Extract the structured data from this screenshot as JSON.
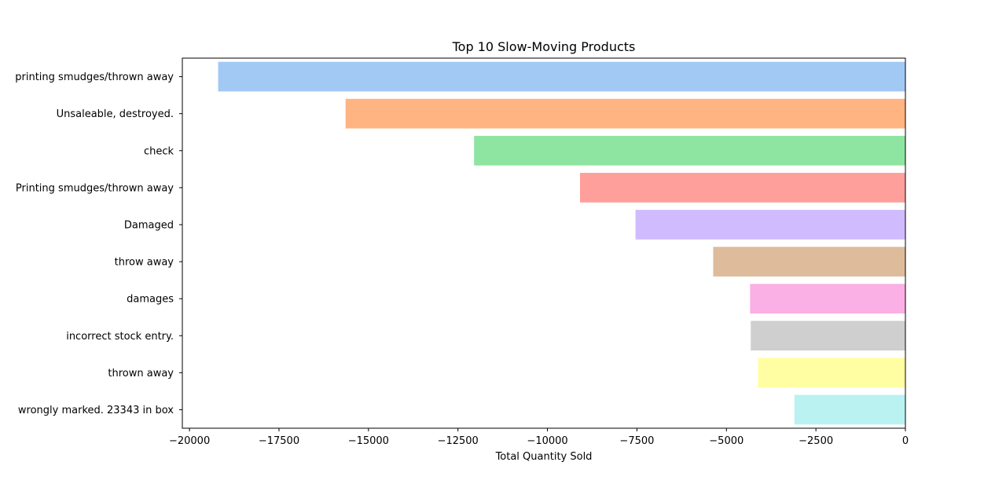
{
  "chart_data": {
    "type": "bar",
    "orientation": "horizontal",
    "title": "Top 10 Slow-Moving Products",
    "xlabel": "Total Quantity Sold",
    "ylabel": "",
    "xlim": [
      -20200,
      0
    ],
    "xticks": [
      -20000,
      -17500,
      -15000,
      -12500,
      -10000,
      -7500,
      -5000,
      -2500,
      0
    ],
    "xtick_labels": [
      "−20000",
      "−17500",
      "−15000",
      "−12500",
      "−10000",
      "−7500",
      "−5000",
      "−2500",
      "0"
    ],
    "grid": false,
    "legend": "none",
    "categories": [
      "printing smudges/thrown away",
      "Unsaleable, destroyed.",
      "check",
      "Printing smudges/thrown away",
      "Damaged",
      "throw away",
      "damages",
      "incorrect stock entry.",
      "thrown away",
      "wrongly marked. 23343 in box"
    ],
    "values": [
      -19200,
      -15640,
      -12050,
      -9090,
      -7540,
      -5370,
      -4340,
      -4320,
      -4120,
      -3100
    ],
    "colors": [
      "#a1c9f4",
      "#ffb482",
      "#8de5a1",
      "#ff9f9b",
      "#d0bbff",
      "#debb9b",
      "#fab0e4",
      "#cfcfcf",
      "#fffea3",
      "#b9f2f0"
    ]
  }
}
